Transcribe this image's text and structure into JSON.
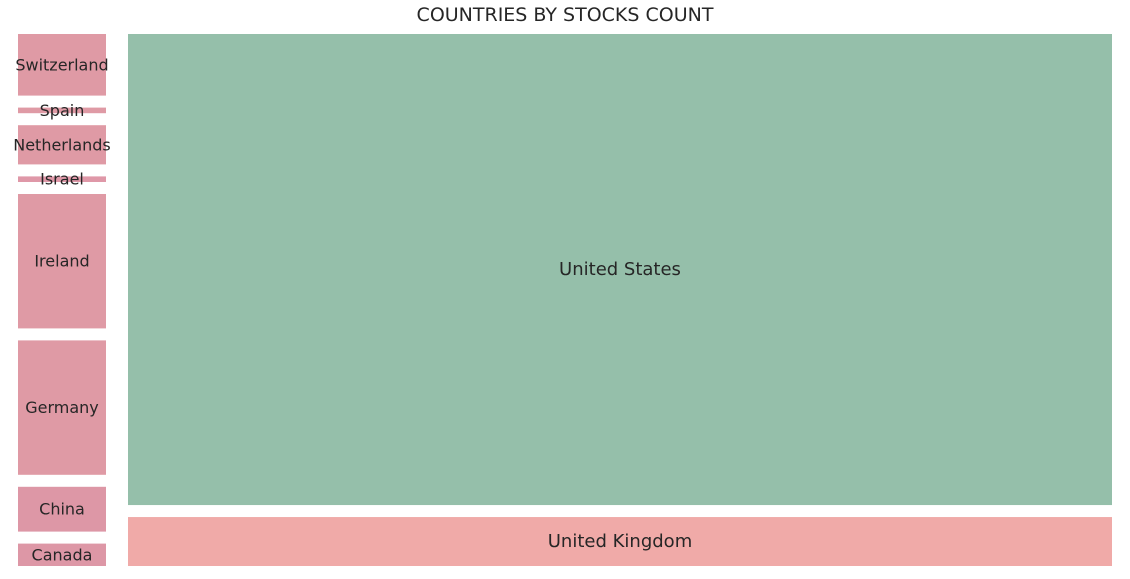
{
  "chart_data": {
    "type": "treemap",
    "title": "COUNTRIES BY STOCKS COUNT",
    "categories": [
      "United States",
      "United Kingdom",
      "Canada",
      "China",
      "Germany",
      "Ireland",
      "Israel",
      "Netherlands",
      "Spain",
      "Switzerland"
    ],
    "values": [
      462,
      48,
      4,
      8,
      24,
      24,
      1,
      7,
      1,
      11
    ],
    "colors": {
      "United States": "#95bfaa",
      "United Kingdom": "#f0aaa8",
      "Canada": "#dd97a6",
      "China": "#dd97a6",
      "Germany": "#df9aa5",
      "Ireland": "#df9aa5",
      "Israel": "#df98a8",
      "Netherlands": "#df9aa5",
      "Spain": "#df9aa5",
      "Switzerland": "#df9aa5"
    },
    "grid": false,
    "legend": "none"
  }
}
